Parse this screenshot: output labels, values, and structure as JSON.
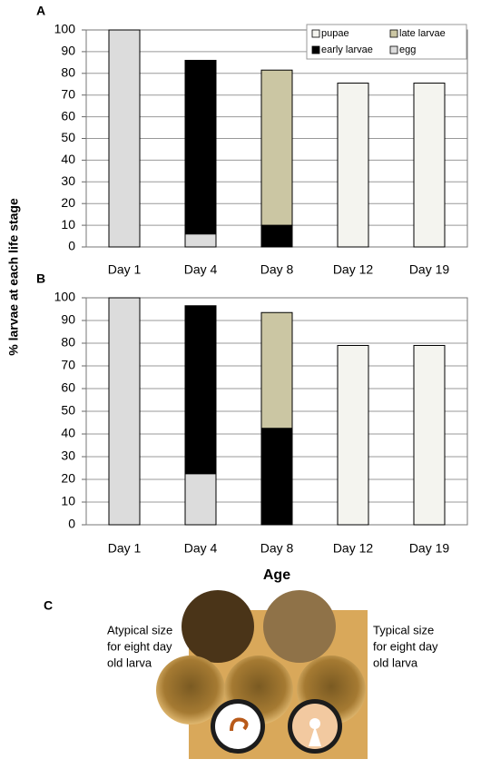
{
  "chart_data": [
    {
      "type": "stacked_bar",
      "title": "A",
      "categories": [
        "Day 1",
        "Day 4",
        "Day 8",
        "Day 12",
        "Day 19"
      ],
      "series": [
        {
          "name": "egg",
          "color": "#dcdcdc",
          "values": [
            100,
            6,
            0,
            0,
            0
          ]
        },
        {
          "name": "early larvae",
          "color": "#000000",
          "values": [
            0,
            80,
            10,
            0,
            0
          ]
        },
        {
          "name": "late larvae",
          "color": "#cbc6a3",
          "values": [
            0,
            0,
            71.5,
            0,
            0
          ]
        },
        {
          "name": "pupae",
          "color": "#f4f4ef",
          "values": [
            0,
            0,
            0,
            75.5,
            75.5
          ]
        }
      ],
      "ylim": [
        0,
        100
      ],
      "yticks": [
        0,
        10,
        20,
        30,
        40,
        50,
        60,
        70,
        80,
        90,
        100
      ],
      "grid": true,
      "legend": "top-right",
      "ylabel": "% larvae at each life stage"
    },
    {
      "type": "stacked_bar",
      "title": "B",
      "categories": [
        "Day 1",
        "Day 4",
        "Day 8",
        "Day 12",
        "Day 19"
      ],
      "series": [
        {
          "name": "egg",
          "color": "#dcdcdc",
          "values": [
            100,
            22.5,
            0,
            0,
            0
          ]
        },
        {
          "name": "early larvae",
          "color": "#000000",
          "values": [
            0,
            74,
            42.5,
            0,
            0
          ]
        },
        {
          "name": "late larvae",
          "color": "#cbc6a3",
          "values": [
            0,
            0,
            51,
            0,
            0
          ]
        },
        {
          "name": "pupae",
          "color": "#f4f4ef",
          "values": [
            0,
            0,
            0,
            79,
            79
          ]
        }
      ],
      "ylim": [
        0,
        100
      ],
      "yticks": [
        0,
        10,
        20,
        30,
        40,
        50,
        60,
        70,
        80,
        90,
        100
      ],
      "grid": true,
      "xlabel": "Age"
    }
  ],
  "panel_c": {
    "label": "C",
    "left_caption": [
      "Atypical size",
      "for eight day",
      "old larva"
    ],
    "right_caption": [
      "Typical size",
      "for eight day",
      "old larva"
    ]
  }
}
